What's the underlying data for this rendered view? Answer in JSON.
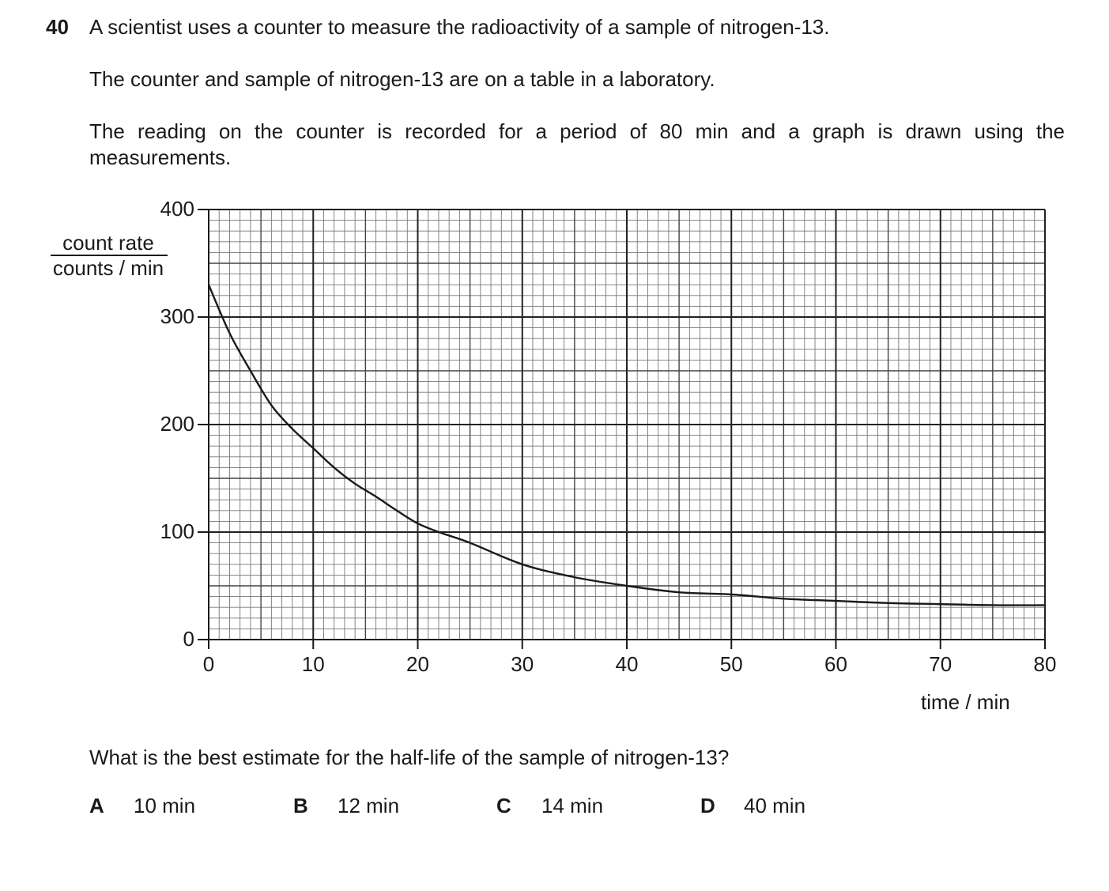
{
  "question": {
    "number": "40",
    "line1": "A scientist uses a counter to measure the radioactivity of a sample of nitrogen-13.",
    "line2": "The counter and sample of nitrogen-13 are on a table in a laboratory.",
    "line3": "The reading on the counter is recorded for a period of 80 min and a graph is drawn using the measurements.",
    "prompt": "What is the best estimate for the half-life of the sample of nitrogen-13?"
  },
  "options": [
    {
      "letter": "A",
      "text": "10 min"
    },
    {
      "letter": "B",
      "text": "12 min"
    },
    {
      "letter": "C",
      "text": "14 min"
    },
    {
      "letter": "D",
      "text": "40 min"
    }
  ],
  "chart_data": {
    "type": "line",
    "xlabel": "time / min",
    "ylabel_numerator": "count rate",
    "ylabel_denominator": "counts / min",
    "xlim": [
      0,
      80
    ],
    "ylim": [
      0,
      400
    ],
    "x_ticks": [
      "0",
      "10",
      "20",
      "30",
      "40",
      "50",
      "60",
      "70",
      "80"
    ],
    "y_ticks": [
      "0",
      "100",
      "200",
      "300",
      "400"
    ],
    "grid": true,
    "x": [
      0,
      2,
      4,
      6,
      8,
      10,
      12,
      14,
      16,
      18,
      20,
      22,
      25,
      30,
      35,
      40,
      45,
      50,
      55,
      60,
      65,
      70,
      75,
      80
    ],
    "y": [
      330,
      285,
      250,
      218,
      196,
      178,
      160,
      145,
      133,
      120,
      108,
      100,
      90,
      70,
      58,
      50,
      44,
      42,
      38,
      36,
      34,
      33,
      32,
      32
    ],
    "line_color": "#1a1a1a"
  }
}
